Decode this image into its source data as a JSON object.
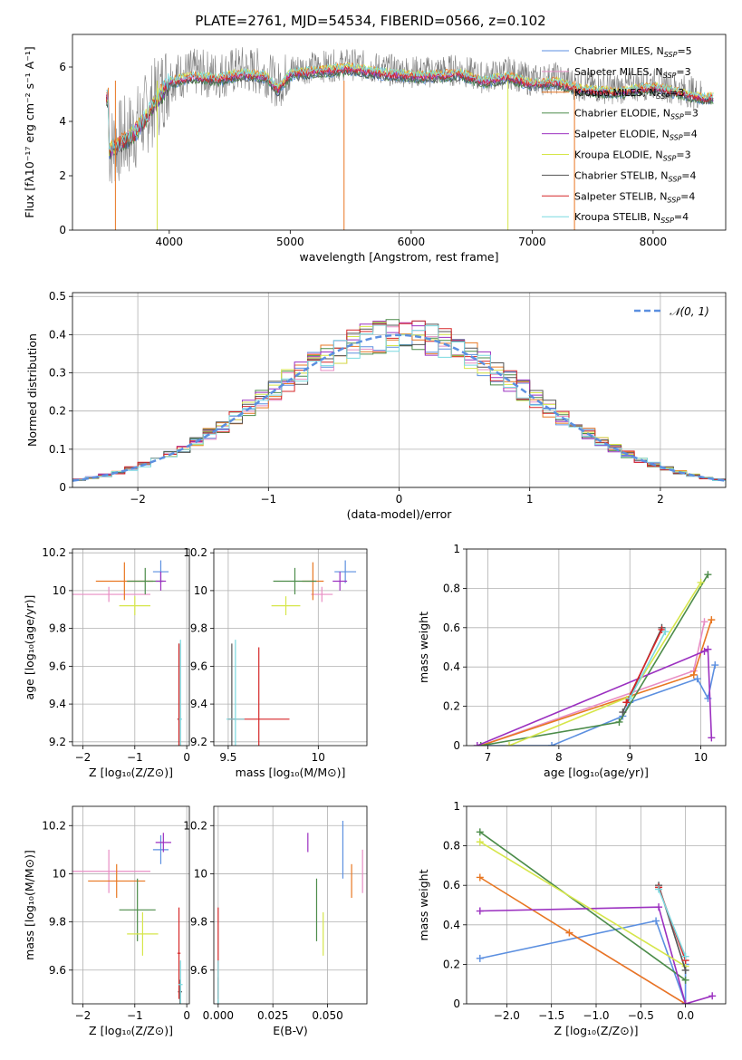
{
  "chart_data": [
    {
      "id": "spectrum",
      "type": "line",
      "title": "PLATE=2761, MJD=54534, FIBERID=0566, z=0.102",
      "xlabel": "wavelength [Angstrom, rest frame]",
      "ylabel": "Flux [fλ10⁻¹⁷ erg cm⁻² s⁻¹ A⁻¹]",
      "xlim": [
        3200,
        8600
      ],
      "ylim": [
        0,
        7.2
      ],
      "xticks": [
        4000,
        5000,
        6000,
        7000,
        8000
      ],
      "yticks": [
        0,
        2,
        4,
        6
      ],
      "data_color": "#808080",
      "data_knots": [
        [
          3500,
          3.0
        ],
        [
          3600,
          3.3
        ],
        [
          3700,
          3.6
        ],
        [
          3800,
          4.2
        ],
        [
          3900,
          4.9
        ],
        [
          4000,
          5.6
        ],
        [
          4200,
          5.8
        ],
        [
          4400,
          5.7
        ],
        [
          4600,
          5.9
        ],
        [
          4800,
          5.8
        ],
        [
          4900,
          5.3
        ],
        [
          5000,
          5.9
        ],
        [
          5200,
          6.0
        ],
        [
          5500,
          6.1
        ],
        [
          5800,
          5.9
        ],
        [
          6100,
          5.8
        ],
        [
          6400,
          5.9
        ],
        [
          6600,
          5.6
        ],
        [
          6800,
          5.8
        ],
        [
          7000,
          5.5
        ],
        [
          7200,
          5.6
        ],
        [
          7400,
          5.3
        ],
        [
          7700,
          5.2
        ],
        [
          8000,
          5.4
        ],
        [
          8300,
          5.1
        ],
        [
          8400,
          5.0
        ]
      ],
      "legend_position": "upper right",
      "legend": [
        {
          "label": "Chabrier MILES, N",
          "sub": "SSP",
          "eq": "=5",
          "color": "#5b8fe0"
        },
        {
          "label": "Salpeter MILES, N",
          "sub": "SSP",
          "eq": "=3",
          "color": "#e88ec4"
        },
        {
          "label": "Kroupa MILES, N",
          "sub": "SSP",
          "eq": "=3",
          "color": "#e87722"
        },
        {
          "label": "Chabrier ELODIE, N",
          "sub": "SSP",
          "eq": "=3",
          "color": "#4c8c4a"
        },
        {
          "label": "Salpeter ELODIE, N",
          "sub": "SSP",
          "eq": "=4",
          "color": "#9b30c0"
        },
        {
          "label": "Kroupa ELODIE, N",
          "sub": "SSP",
          "eq": "=3",
          "color": "#d6e64a"
        },
        {
          "label": "Chabrier STELIB, N",
          "sub": "SSP",
          "eq": "=4",
          "color": "#555555"
        },
        {
          "label": "Salpeter STELIB, N",
          "sub": "SSP",
          "eq": "=4",
          "color": "#d62728"
        },
        {
          "label": "Kroupa STELIB, N",
          "sub": "SSP",
          "eq": "=4",
          "color": "#7ad9e0"
        }
      ]
    },
    {
      "id": "residuals",
      "type": "line",
      "xlabel": "(data-model)/error",
      "ylabel": "Normed distribution",
      "xlim": [
        -2.5,
        2.5
      ],
      "ylim": [
        0,
        0.51
      ],
      "xticks": [
        -2,
        -1,
        0,
        1,
        2
      ],
      "yticks": [
        0.0,
        0.1,
        0.2,
        0.3,
        0.4,
        0.5
      ],
      "grid": true,
      "bin_width": 0.1,
      "legend_position": "upper right",
      "legend": [
        {
          "label": "𝒩(0, 1)",
          "color": "#5b8fe0",
          "style": "dashed"
        }
      ]
    },
    {
      "id": "Z_vs_age",
      "type": "scatter",
      "xlabel": "Z [log₁₀(Z/Z⊙)]",
      "ylabel": "age  [log₁₀(age/yr)]",
      "xlim": [
        -2.2,
        0.05
      ],
      "ylim": [
        9.18,
        10.22
      ],
      "xticks": [
        -2,
        -1,
        0
      ],
      "yticks": [
        9.2,
        9.4,
        9.6,
        9.8,
        10.0,
        10.2
      ],
      "grid": true,
      "points": [
        {
          "color": "#5b8fe0",
          "x": -0.5,
          "xerr": 0.15,
          "y": 10.1,
          "yerr": 0.06
        },
        {
          "color": "#e88ec4",
          "x": -1.5,
          "xerr": 0.8,
          "y": 9.98,
          "yerr": 0.04
        },
        {
          "color": "#e87722",
          "x": -1.2,
          "xerr": 0.55,
          "y": 10.05,
          "yerr": 0.1
        },
        {
          "color": "#4c8c4a",
          "x": -0.8,
          "xerr": 0.35,
          "y": 10.05,
          "yerr": 0.07
        },
        {
          "color": "#9b30c0",
          "x": -0.5,
          "xerr": 0.1,
          "y": 10.05,
          "yerr": 0.05
        },
        {
          "color": "#d6e64a",
          "x": -1.0,
          "xerr": 0.3,
          "y": 9.92,
          "yerr": 0.05
        },
        {
          "color": "#555555",
          "x": -0.15,
          "xerr": 0.02,
          "y": 9.32,
          "yerr": 0.4
        },
        {
          "color": "#d62728",
          "x": -0.15,
          "xerr": 0.03,
          "y": 9.32,
          "yerr": 0.4
        },
        {
          "color": "#7ad9e0",
          "x": -0.12,
          "xerr": 0.03,
          "y": 9.32,
          "yerr": 0.42
        }
      ]
    },
    {
      "id": "mass_vs_age",
      "type": "scatter",
      "xlabel": "mass [log₁₀(M/M⊙)]",
      "ylabel": "",
      "xlim": [
        9.42,
        10.27
      ],
      "ylim": [
        9.18,
        10.22
      ],
      "xticks": [
        9.5,
        10.0
      ],
      "yticks": [
        9.2,
        9.4,
        9.6,
        9.8,
        10.0,
        10.2
      ],
      "grid": true,
      "points": [
        {
          "color": "#5b8fe0",
          "x": 10.15,
          "xerr": 0.06,
          "y": 10.1,
          "yerr": 0.06
        },
        {
          "color": "#e88ec4",
          "x": 10.02,
          "xerr": 0.06,
          "y": 9.98,
          "yerr": 0.04
        },
        {
          "color": "#e87722",
          "x": 9.97,
          "xerr": 0.06,
          "y": 10.05,
          "yerr": 0.1
        },
        {
          "color": "#4c8c4a",
          "x": 9.87,
          "xerr": 0.12,
          "y": 10.05,
          "yerr": 0.07
        },
        {
          "color": "#9b30c0",
          "x": 10.12,
          "xerr": 0.04,
          "y": 10.05,
          "yerr": 0.05
        },
        {
          "color": "#d6e64a",
          "x": 9.82,
          "xerr": 0.08,
          "y": 9.92,
          "yerr": 0.05
        },
        {
          "color": "#555555",
          "x": 9.52,
          "xerr": 0.02,
          "y": 9.32,
          "yerr": 0.4
        },
        {
          "color": "#d62728",
          "x": 9.67,
          "xerr": 0.17,
          "y": 9.32,
          "yerr": 0.38
        },
        {
          "color": "#7ad9e0",
          "x": 9.54,
          "xerr": 0.05,
          "y": 9.32,
          "yerr": 0.42
        }
      ]
    },
    {
      "id": "age_vs_weight",
      "type": "line",
      "xlabel": "age  [log₁₀(age/yr)]",
      "ylabel": "mass weight",
      "xlim": [
        6.7,
        10.35
      ],
      "ylim": [
        0,
        1.0
      ],
      "xticks": [
        7,
        8,
        9,
        10
      ],
      "yticks": [
        0.0,
        0.2,
        0.4,
        0.6,
        0.8,
        1.0
      ],
      "grid": true,
      "series": [
        {
          "color": "#5b8fe0",
          "points": [
            [
              7.0,
              0.0
            ],
            [
              7.9,
              0.0
            ],
            [
              8.9,
              0.15
            ],
            [
              9.0,
              0.22
            ],
            [
              9.95,
              0.34
            ],
            [
              10.1,
              0.24
            ],
            [
              10.2,
              0.41
            ]
          ]
        },
        {
          "color": "#e88ec4",
          "points": [
            [
              6.9,
              0.0
            ],
            [
              9.9,
              0.38
            ],
            [
              10.05,
              0.63
            ]
          ]
        },
        {
          "color": "#e87722",
          "points": [
            [
              6.9,
              0.0
            ],
            [
              9.9,
              0.36
            ],
            [
              10.15,
              0.64
            ]
          ]
        },
        {
          "color": "#4c8c4a",
          "points": [
            [
              6.9,
              0.0
            ],
            [
              8.85,
              0.12
            ],
            [
              10.1,
              0.87
            ]
          ]
        },
        {
          "color": "#9b30c0",
          "points": [
            [
              6.85,
              0.0
            ],
            [
              10.05,
              0.48
            ],
            [
              10.1,
              0.49
            ],
            [
              10.15,
              0.04
            ]
          ]
        },
        {
          "color": "#d6e64a",
          "points": [
            [
              7.3,
              0.0
            ],
            [
              9.0,
              0.25
            ],
            [
              10.0,
              0.83
            ]
          ]
        },
        {
          "color": "#555555",
          "points": [
            [
              8.9,
              0.17
            ],
            [
              9.45,
              0.6
            ]
          ]
        },
        {
          "color": "#d62728",
          "points": [
            [
              8.95,
              0.22
            ],
            [
              9.45,
              0.59
            ]
          ]
        },
        {
          "color": "#7ad9e0",
          "points": [
            [
              9.0,
              0.24
            ],
            [
              9.5,
              0.58
            ]
          ]
        }
      ]
    },
    {
      "id": "Z_vs_mass",
      "type": "scatter",
      "xlabel": "Z [log₁₀(Z/Z⊙)]",
      "ylabel": "mass [log₁₀(M/M⊙)]",
      "xlim": [
        -2.2,
        0.05
      ],
      "ylim": [
        9.46,
        10.28
      ],
      "xticks": [
        -2,
        -1,
        0
      ],
      "yticks": [
        9.6,
        9.8,
        10.0,
        10.2
      ],
      "grid": true,
      "points": [
        {
          "color": "#5b8fe0",
          "x": -0.5,
          "xerr": 0.15,
          "y": 10.1,
          "yerr": 0.06
        },
        {
          "color": "#e88ec4",
          "x": -1.5,
          "xerr": 0.8,
          "y": 10.01,
          "yerr": 0.09
        },
        {
          "color": "#e87722",
          "x": -1.35,
          "xerr": 0.55,
          "y": 9.97,
          "yerr": 0.07
        },
        {
          "color": "#4c8c4a",
          "x": -0.95,
          "xerr": 0.35,
          "y": 9.85,
          "yerr": 0.13
        },
        {
          "color": "#9b30c0",
          "x": -0.45,
          "xerr": 0.15,
          "y": 10.13,
          "yerr": 0.04
        },
        {
          "color": "#d6e64a",
          "x": -0.85,
          "xerr": 0.3,
          "y": 9.75,
          "yerr": 0.09
        },
        {
          "color": "#555555",
          "x": -0.13,
          "xerr": 0.04,
          "y": 9.51,
          "yerr": 0.05
        },
        {
          "color": "#d62728",
          "x": -0.15,
          "xerr": 0.03,
          "y": 9.67,
          "yerr": 0.19
        },
        {
          "color": "#7ad9e0",
          "x": -0.12,
          "xerr": 0.04,
          "y": 9.54,
          "yerr": 0.1
        }
      ]
    },
    {
      "id": "EBV_vs_mass",
      "type": "scatter",
      "xlabel": "E(B-V)",
      "ylabel": "",
      "xlim": [
        -0.002,
        0.068
      ],
      "ylim": [
        9.46,
        10.28
      ],
      "xticks": [
        0.0,
        0.025,
        0.05
      ],
      "xticklabels": [
        "0.000",
        "0.025",
        "0.050"
      ],
      "yticks": [
        9.6,
        9.8,
        10.0,
        10.2
      ],
      "grid": true,
      "points": [
        {
          "color": "#5b8fe0",
          "x": 0.057,
          "y": 10.1,
          "yerr": 0.12
        },
        {
          "color": "#e88ec4",
          "x": 0.066,
          "y": 10.01,
          "yerr": 0.09
        },
        {
          "color": "#e87722",
          "x": 0.061,
          "y": 9.97,
          "yerr": 0.07
        },
        {
          "color": "#4c8c4a",
          "x": 0.045,
          "y": 9.85,
          "yerr": 0.13
        },
        {
          "color": "#9b30c0",
          "x": 0.041,
          "y": 10.13,
          "yerr": 0.04
        },
        {
          "color": "#d6e64a",
          "x": 0.048,
          "y": 9.75,
          "yerr": 0.09
        },
        {
          "color": "#555555",
          "x": 0.0,
          "y": 9.51,
          "yerr": 0.06
        },
        {
          "color": "#d62728",
          "x": 0.0,
          "y": 9.67,
          "yerr": 0.19
        },
        {
          "color": "#7ad9e0",
          "x": 0.0,
          "y": 9.54,
          "yerr": 0.1
        }
      ]
    },
    {
      "id": "Z_vs_weight",
      "type": "line",
      "xlabel": "Z [log₁₀(Z/Z⊙)]",
      "ylabel": "mass weight",
      "xlim": [
        -2.45,
        0.45
      ],
      "ylim": [
        0,
        1.0
      ],
      "xticks": [
        -2.0,
        -1.5,
        -1.0,
        -0.5,
        0.0
      ],
      "xticklabels": [
        "−2.0",
        "−1.5",
        "−1.0",
        "−0.5",
        "0.0"
      ],
      "yticks": [
        0.0,
        0.2,
        0.4,
        0.6,
        0.8,
        1.0
      ],
      "grid": true,
      "series": [
        {
          "color": "#5b8fe0",
          "points": [
            [
              -2.3,
              0.23
            ],
            [
              -0.33,
              0.42
            ],
            [
              0.0,
              0.0
            ],
            [
              0.0,
              0.2
            ]
          ]
        },
        {
          "color": "#e88ec4",
          "points": [
            [
              -1.3,
              0.36
            ],
            [
              0.0,
              0.0
            ]
          ]
        },
        {
          "color": "#e87722",
          "points": [
            [
              -2.3,
              0.64
            ],
            [
              -1.3,
              0.36
            ],
            [
              0.0,
              0.0
            ]
          ]
        },
        {
          "color": "#4c8c4a",
          "points": [
            [
              -2.3,
              0.87
            ],
            [
              0.0,
              0.12
            ]
          ]
        },
        {
          "color": "#9b30c0",
          "points": [
            [
              -2.3,
              0.47
            ],
            [
              -0.3,
              0.49
            ],
            [
              0.0,
              0.0
            ],
            [
              0.3,
              0.04
            ]
          ]
        },
        {
          "color": "#d6e64a",
          "points": [
            [
              -2.3,
              0.82
            ],
            [
              0.0,
              0.19
            ]
          ]
        },
        {
          "color": "#555555",
          "points": [
            [
              -0.3,
              0.6
            ],
            [
              0.0,
              0.17
            ]
          ]
        },
        {
          "color": "#d62728",
          "points": [
            [
              -0.3,
              0.59
            ],
            [
              0.0,
              0.22
            ]
          ]
        },
        {
          "color": "#7ad9e0",
          "points": [
            [
              -0.3,
              0.58
            ],
            [
              0.0,
              0.24
            ]
          ]
        }
      ]
    }
  ]
}
